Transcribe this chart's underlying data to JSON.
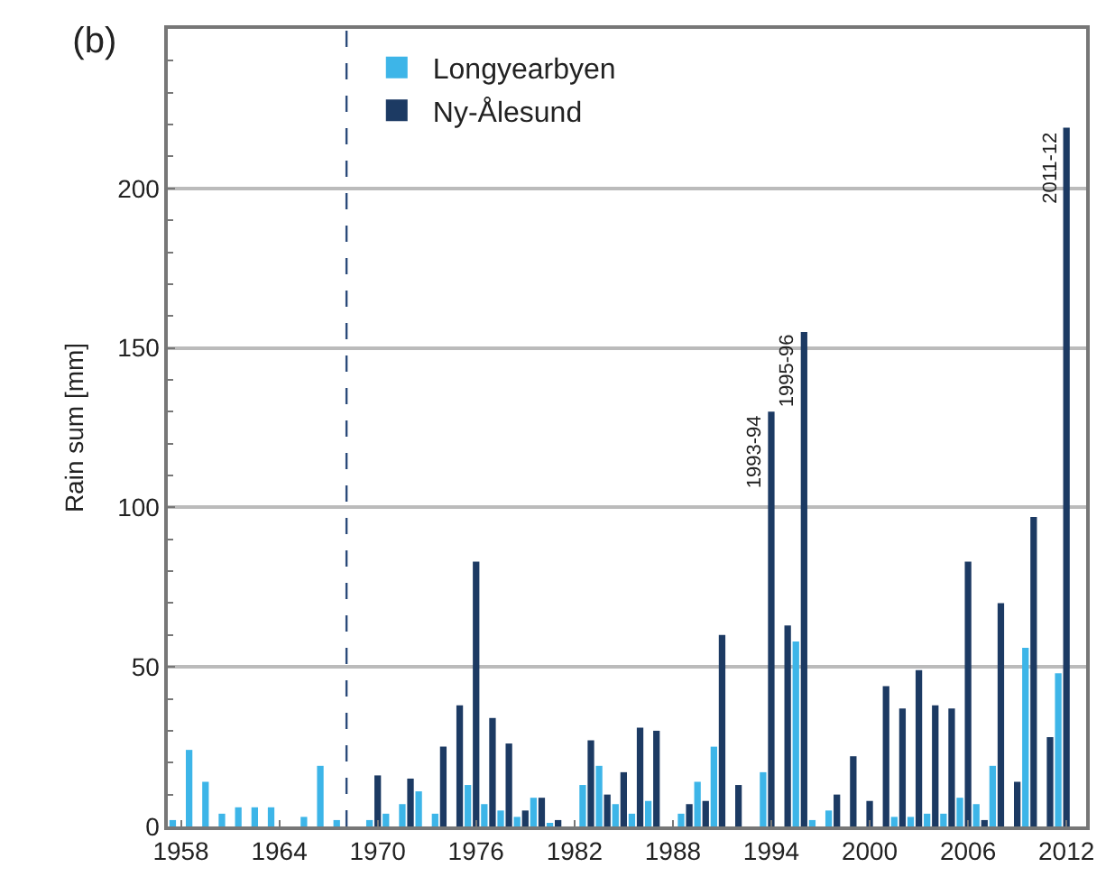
{
  "chart_data": {
    "type": "bar",
    "title": "(b)",
    "ylabel": "Rain sum [mm]",
    "x": [
      1958,
      1959,
      1960,
      1961,
      1962,
      1963,
      1964,
      1965,
      1966,
      1967,
      1968,
      1969,
      1970,
      1971,
      1972,
      1973,
      1974,
      1975,
      1976,
      1977,
      1978,
      1979,
      1980,
      1981,
      1982,
      1983,
      1984,
      1985,
      1986,
      1987,
      1988,
      1989,
      1990,
      1991,
      1992,
      1993,
      1994,
      1995,
      1996,
      1997,
      1998,
      1999,
      2000,
      2001,
      2002,
      2003,
      2004,
      2005,
      2006,
      2007,
      2008,
      2009,
      2010,
      2011,
      2012
    ],
    "series": [
      {
        "name": "Longyearbyen",
        "color": "#3db5e8",
        "values": [
          2,
          24,
          14,
          4,
          6,
          6,
          6,
          0,
          3,
          19,
          2,
          0,
          2,
          4,
          7,
          11,
          4,
          0,
          13,
          7,
          5,
          3,
          9,
          1,
          0,
          13,
          19,
          7,
          4,
          8,
          0,
          4,
          14,
          25,
          0,
          0,
          17,
          0,
          58,
          2,
          5,
          0,
          0,
          0,
          3,
          3,
          4,
          4,
          9,
          7,
          19,
          0,
          56,
          0,
          48
        ]
      },
      {
        "name": "Ny-Ålesund",
        "color": "#1c3a63",
        "values": [
          null,
          null,
          null,
          null,
          null,
          null,
          null,
          null,
          null,
          null,
          null,
          0,
          16,
          0,
          15,
          0,
          25,
          38,
          83,
          34,
          26,
          5,
          9,
          2,
          0,
          27,
          10,
          17,
          31,
          30,
          0,
          7,
          8,
          60,
          13,
          0,
          130,
          63,
          155,
          0,
          10,
          22,
          8,
          44,
          37,
          49,
          38,
          37,
          83,
          2,
          70,
          14,
          97,
          28,
          219
        ]
      }
    ],
    "xlim": [
      1957.2,
      2013.2
    ],
    "xticks": [
      1958,
      1964,
      1970,
      1976,
      1982,
      1988,
      1994,
      2000,
      2006,
      2012
    ],
    "ylim": [
      0,
      250
    ],
    "yticks": [
      0,
      50,
      100,
      150,
      200
    ],
    "grid": "y",
    "legend": "top left",
    "ref_lines": [
      {
        "axis": "x",
        "value": 1968.1,
        "color": "#2b4a7a",
        "line_style": "dashed"
      }
    ],
    "annotations": [
      {
        "text": "1993-94",
        "x": 1994,
        "y": 130
      },
      {
        "text": "1995-96",
        "x": 1996,
        "y": 155
      },
      {
        "text": "2011-12",
        "x": 2012,
        "y": 219
      }
    ]
  }
}
